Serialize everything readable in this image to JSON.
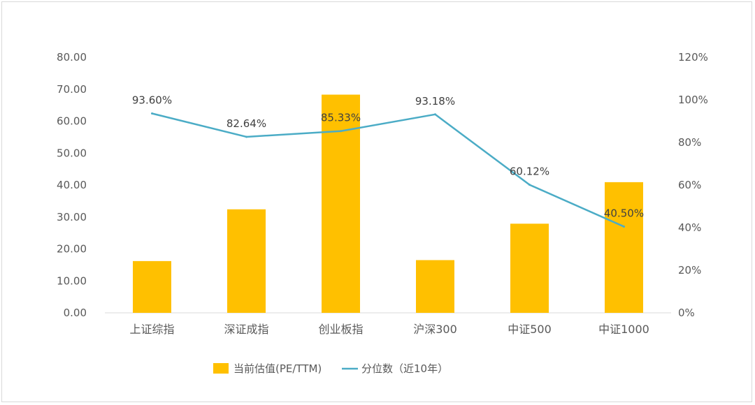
{
  "chart_data": {
    "type": "bar+line",
    "categories": [
      "上证综指",
      "深证成指",
      "创业板指",
      "沪深300",
      "中证500",
      "中证1000"
    ],
    "series": [
      {
        "name": "当前估值(PE/TTM)",
        "type": "bar",
        "axis": "left",
        "values": [
          16.2,
          32.4,
          68.3,
          16.5,
          27.9,
          40.9
        ],
        "color": "#FFC000"
      },
      {
        "name": "分位数（近10年）",
        "type": "line",
        "axis": "right",
        "values": [
          93.6,
          82.64,
          85.33,
          93.18,
          60.12,
          40.5
        ],
        "labels": [
          "93.60%",
          "82.64%",
          "85.33%",
          "93.18%",
          "60.12%",
          "40.50%"
        ],
        "color": "#4BACC6"
      }
    ],
    "left_axis": {
      "min": 0,
      "max": 80,
      "step": 10,
      "tick_labels": [
        "0.00",
        "10.00",
        "20.00",
        "30.00",
        "40.00",
        "50.00",
        "60.00",
        "70.00",
        "80.00"
      ]
    },
    "right_axis": {
      "min": 0,
      "max": 120,
      "step": 20,
      "tick_labels": [
        "0%",
        "20%",
        "40%",
        "60%",
        "80%",
        "100%",
        "120%"
      ]
    },
    "grid": false,
    "legend_placement": "bottom"
  }
}
